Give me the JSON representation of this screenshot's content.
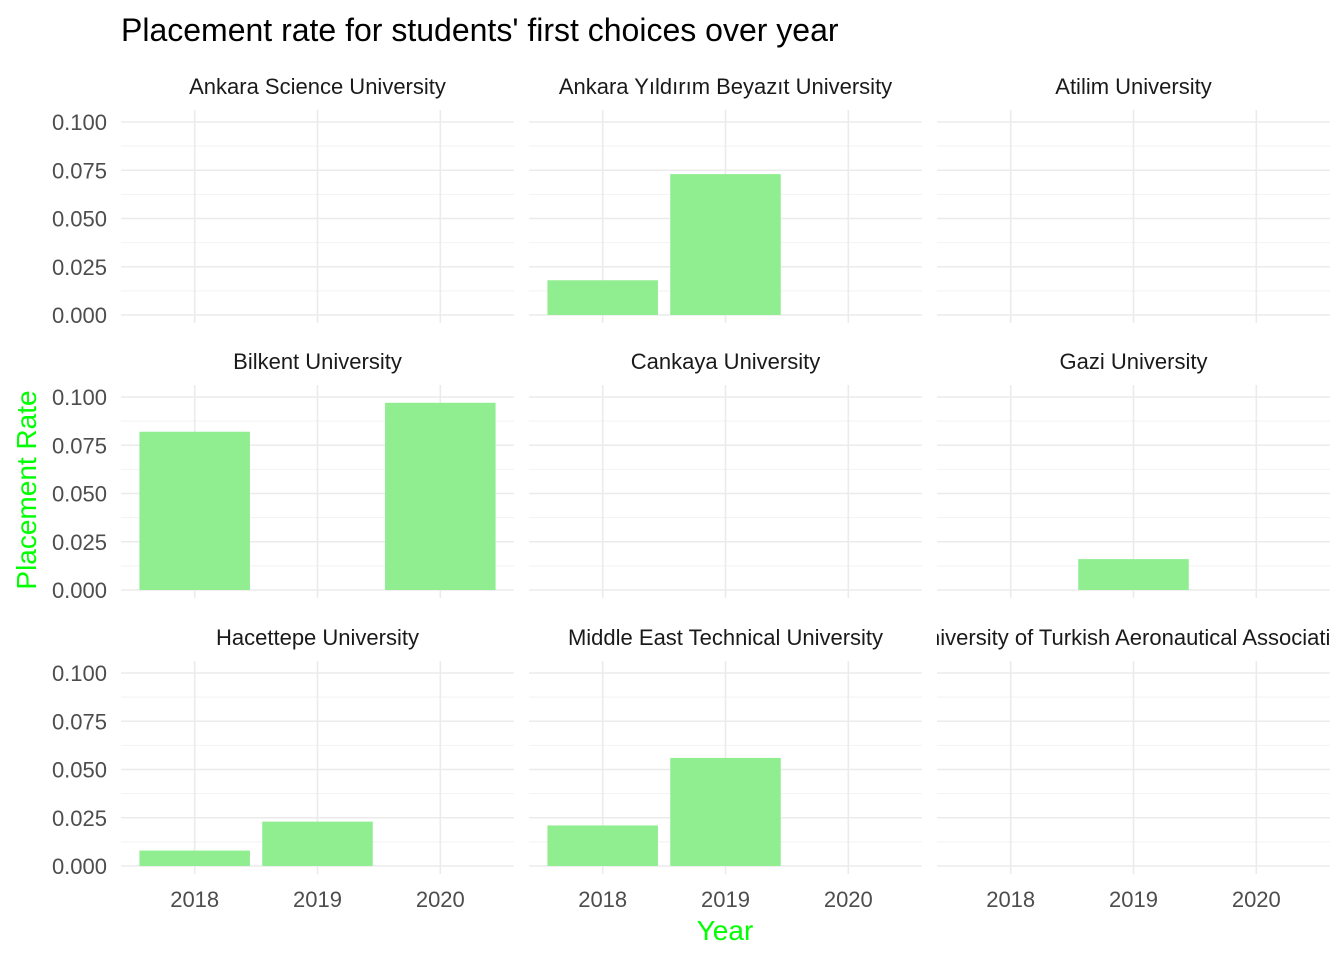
{
  "chart_data": {
    "type": "bar",
    "title": "Placement rate for students' first choices over year",
    "xlabel": "Year",
    "ylabel": "Placement Rate",
    "label_color": "#00ff00",
    "bar_color": "#90ee90",
    "x": [
      "2018",
      "2019",
      "2020"
    ],
    "ylim": [
      0,
      0.1
    ],
    "yticks": [
      "0.000",
      "0.025",
      "0.050",
      "0.075",
      "0.100"
    ],
    "grid": true,
    "facets": [
      {
        "name": "Ankara Science University",
        "values": [
          null,
          null,
          null
        ]
      },
      {
        "name": "Ankara Yıldırım Beyazıt University",
        "values": [
          0.018,
          0.073,
          null
        ]
      },
      {
        "name": "Atilim University",
        "values": [
          null,
          null,
          null
        ]
      },
      {
        "name": "Bilkent University",
        "values": [
          0.082,
          null,
          0.097
        ]
      },
      {
        "name": "Cankaya University",
        "values": [
          null,
          null,
          null
        ]
      },
      {
        "name": "Gazi University",
        "values": [
          null,
          0.016,
          null
        ]
      },
      {
        "name": "Hacettepe University",
        "values": [
          0.008,
          0.023,
          null
        ]
      },
      {
        "name": "Middle East Technical University",
        "values": [
          0.021,
          0.056,
          null
        ]
      },
      {
        "name": "University of Turkish Aeronautical Association",
        "values": [
          null,
          null,
          null
        ]
      }
    ]
  }
}
